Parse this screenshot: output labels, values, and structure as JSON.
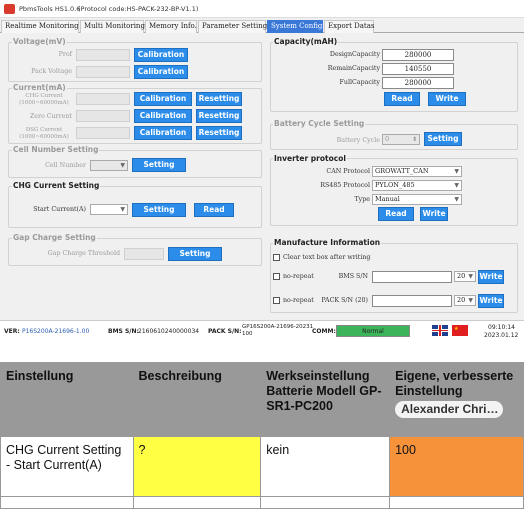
{
  "window": {
    "title": "PbmsTools HS1.0.6",
    "protocol_code": "(Protocol code:HS-PACK-232-BP-V1.1)"
  },
  "tabs": [
    "Realtime Monitoring",
    "Multi Monitoring",
    "Memory Info.",
    "Parameter Setting",
    "System Config.",
    "Export Datas"
  ],
  "voltage": {
    "title": "Voltage(mV)",
    "prof_label": "Prof",
    "pack_label": "Pack Voltage",
    "calibration": "Calibration"
  },
  "current": {
    "title": "Current(mA)",
    "chg_label_1": "CHG Current",
    "chg_label_2": "(1000~60000mA)",
    "zero_label": "Zero Current",
    "dsg_label_1": "DSG Current",
    "dsg_label_2": "(1000~60000mA)",
    "calibration": "Calibration",
    "resetting": "Resetting"
  },
  "cell_number": {
    "title": "Cell Number Setting",
    "label": "Cell Number",
    "setting": "Setting"
  },
  "chg_current": {
    "title": "CHG Current Setting",
    "label": "Start Current(A)",
    "setting": "Setting",
    "read": "Read"
  },
  "gap_charge": {
    "title": "Gap Charge Setting",
    "label": "Gap Charge Threshold",
    "setting": "Setting"
  },
  "capacity": {
    "title": "Capacity(mAH)",
    "design_label": "DesignCapacity",
    "design_value": "280000",
    "remain_label": "RemainCapacity",
    "remain_value": "140550",
    "full_label": "FullCapacity",
    "full_value": "280000",
    "read": "Read",
    "write": "Write"
  },
  "battery_cycle": {
    "title": "Battery Cycle Setting",
    "label": "Battery Cycle",
    "value": "0",
    "setting": "Setting"
  },
  "inverter": {
    "title": "Inverter protocol",
    "can_label": "CAN Protocol",
    "can_value": "GROWATT_CAN",
    "rs485_label": "RS485 Protocol",
    "rs485_value": "PYLON_485",
    "type_label": "Type",
    "type_value": "Manual",
    "read": "Read",
    "write": "Write"
  },
  "manufacture": {
    "title": "Manufacture Information",
    "clear_text": "Clear text box after writing",
    "no_repeat": "no-repeat",
    "bms_sn_label": "BMS S/N",
    "pack_sn_label": "PACK S/N (20)",
    "count_value": "20",
    "write": "Write"
  },
  "status": {
    "ver_label": "VER:",
    "ver_value": "P16S200A-21696-1.00",
    "bms_label": "BMS S/N:",
    "bms_value": "2160610240000034",
    "pack_label": "PACK S/N:",
    "pack_value_1": "GP16S200A-21696-20231",
    "pack_value_2": "100",
    "comm_label": "COMM:",
    "comm_value": "Normal",
    "comm_progress": 1.0,
    "time": "09:10:14",
    "date": "2023.01.12"
  },
  "table": {
    "headers": [
      "Einstellung",
      "Beschreibung",
      "Werkseinstellung Batterie Modell GP-SR1-PC200",
      "Eigene, verbesserte Einstellung"
    ],
    "user_badge": "Alexander Chri…",
    "rows": [
      [
        "CHG Current Setting - Start Current(A)",
        "?",
        "kein",
        "100"
      ]
    ]
  },
  "colors": {
    "accent_button": "#2b8cea",
    "active_tab": "#3a78d8",
    "comm_green": "#3cb45a",
    "cell_yellow": "#ffff44",
    "cell_orange": "#f5923a",
    "header_gray": "#999999"
  }
}
